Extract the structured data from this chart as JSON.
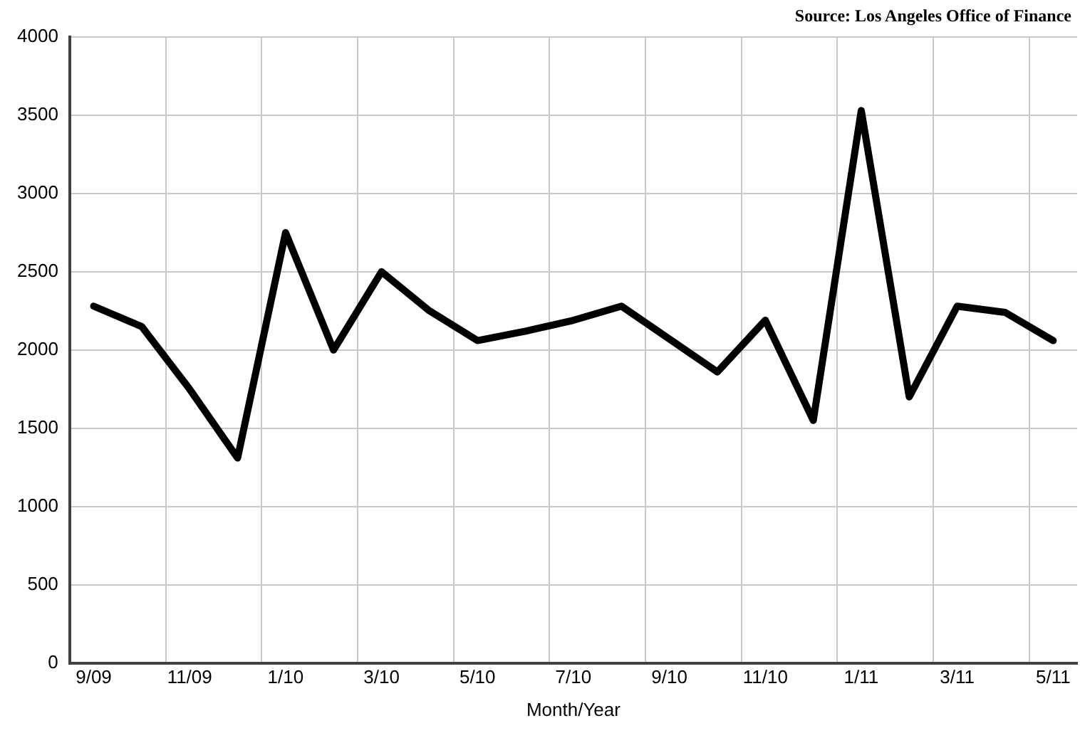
{
  "chart_data": {
    "type": "line",
    "xlabel": "Month/Year",
    "annotations": [
      "Source: Los Angeles Office of Finance"
    ],
    "categories": [
      "9/09",
      null,
      "11/09",
      null,
      "1/10",
      null,
      "3/10",
      null,
      "5/10",
      null,
      "7/10",
      null,
      "9/10",
      null,
      "11/10",
      null,
      "1/11",
      null,
      "3/11",
      null,
      "5/11"
    ],
    "series": [
      {
        "color": "#000000",
        "values": [
          2280,
          2150,
          1750,
          1310,
          2750,
          2000,
          2500,
          2250,
          2060,
          2120,
          2190,
          2280,
          2070,
          1860,
          2190,
          1550,
          3530,
          1700,
          2280,
          2240,
          2060
        ]
      }
    ],
    "ylim": [
      0,
      4000
    ],
    "yticks": [
      0,
      500,
      1000,
      1500,
      2000,
      2500,
      3000,
      3500,
      4000
    ],
    "grid": true,
    "marker": "none",
    "line_style": "solid",
    "legend": false
  }
}
